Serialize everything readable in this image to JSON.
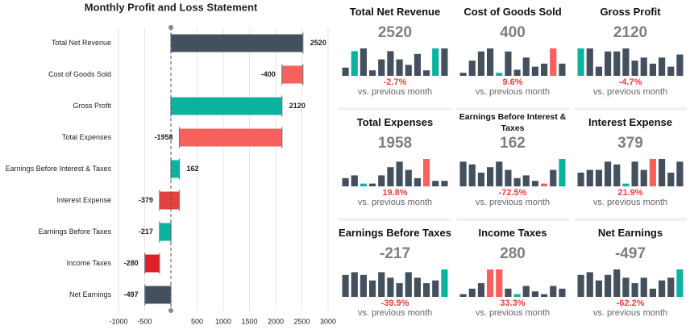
{
  "chart_data": {
    "type": "waterfall",
    "title": "Monthly Profit and Loss Statement",
    "categories": [
      "Total Net Revenue",
      "Cost of Goods Sold",
      "Gross Profit",
      "Total Expenses",
      "Earnings Before Interest & Taxes",
      "Interest Expense",
      "Earnings Before Taxes",
      "Income Taxes",
      "Net Earnings"
    ],
    "values": [
      2520,
      -400,
      2120,
      -1958,
      162,
      -379,
      -217,
      -280,
      -497
    ],
    "totals": [
      true,
      false,
      true,
      false,
      true,
      false,
      true,
      false,
      true
    ],
    "colors": [
      "#44505e",
      "#f8605e",
      "#0ab3a0",
      "#f8605e",
      "#0ab3a0",
      "#e8403e",
      "#0ab3a0",
      "#e02024",
      "#44505e"
    ],
    "xlim": [
      -1000,
      3000
    ],
    "xticks": [
      -1000,
      -500,
      500,
      1000,
      1500,
      2000,
      2500,
      3000
    ],
    "grid": true
  },
  "cards": [
    {
      "title": "Total Net Revenue",
      "value": 2520,
      "change": "-2.7%",
      "note": "vs. previous month",
      "bars": [
        3,
        9,
        10,
        2,
        6,
        9,
        6,
        4,
        8,
        2,
        10,
        10
      ],
      "bar_colors": [
        "#44505e",
        "#0ab3a0",
        "#44505e",
        "#44505e",
        "#44505e",
        "#44505e",
        "#44505e",
        "#44505e",
        "#44505e",
        "#44505e",
        "#0ab3a0",
        "#44505e"
      ]
    },
    {
      "title": "Cost of Goods Sold",
      "value": 400,
      "change": "9.6%",
      "note": "vs. previous month",
      "bars": [
        1,
        5,
        8,
        9,
        1,
        8,
        2,
        6,
        3,
        4,
        9,
        4
      ],
      "bar_colors": [
        "#44505e",
        "#44505e",
        "#44505e",
        "#44505e",
        "#0ab3a0",
        "#44505e",
        "#44505e",
        "#44505e",
        "#44505e",
        "#44505e",
        "#f8605e",
        "#44505e"
      ]
    },
    {
      "title": "Gross Profit",
      "value": 2120,
      "change": "-4.7%",
      "note": "vs. previous month",
      "bars": [
        9,
        9,
        3,
        8,
        8,
        9,
        5,
        6,
        4,
        6,
        3,
        7
      ],
      "bar_colors": [
        "#0ab3a0",
        "#44505e",
        "#44505e",
        "#44505e",
        "#44505e",
        "#44505e",
        "#44505e",
        "#44505e",
        "#44505e",
        "#44505e",
        "#44505e",
        "#44505e"
      ]
    },
    {
      "title": "Total Expenses",
      "value": 1958,
      "change": "19.8%",
      "note": "vs. previous month",
      "bars": [
        3,
        4,
        1,
        1,
        4,
        7,
        9,
        6,
        3,
        10,
        2,
        2
      ],
      "bar_colors": [
        "#44505e",
        "#44505e",
        "#0ab3a0",
        "#44505e",
        "#44505e",
        "#44505e",
        "#44505e",
        "#44505e",
        "#44505e",
        "#f8605e",
        "#44505e",
        "#44505e"
      ]
    },
    {
      "title": "Earnings Before Interest & Taxes",
      "value": 162,
      "change": "-72.5%",
      "note": "vs. previous month",
      "bars": [
        9,
        8,
        5,
        7,
        9,
        6,
        3,
        4,
        2,
        1,
        6,
        10
      ],
      "bar_colors": [
        "#44505e",
        "#44505e",
        "#44505e",
        "#44505e",
        "#44505e",
        "#44505e",
        "#44505e",
        "#44505e",
        "#44505e",
        "#f8605e",
        "#44505e",
        "#0ab3a0"
      ]
    },
    {
      "title": "Interest Expense",
      "value": 379,
      "change": "21.9%",
      "note": "vs. previous month",
      "bars": [
        5,
        6,
        6,
        9,
        8,
        1,
        9,
        6,
        10,
        10,
        5,
        9
      ],
      "bar_colors": [
        "#44505e",
        "#44505e",
        "#44505e",
        "#44505e",
        "#44505e",
        "#0ab3a0",
        "#44505e",
        "#44505e",
        "#f8605e",
        "#44505e",
        "#44505e",
        "#44505e"
      ]
    },
    {
      "title": "Earnings Before Taxes",
      "value": -217,
      "change": "-39.9%",
      "note": "vs. previous month",
      "bars": [
        8,
        9,
        8,
        6,
        9,
        7,
        5,
        9,
        7,
        5,
        6,
        10
      ],
      "bar_colors": [
        "#44505e",
        "#44505e",
        "#44505e",
        "#44505e",
        "#44505e",
        "#44505e",
        "#44505e",
        "#44505e",
        "#44505e",
        "#44505e",
        "#44505e",
        "#0ab3a0"
      ]
    },
    {
      "title": "Income Taxes",
      "value": 280,
      "change": "33.3%",
      "note": "vs. previous month",
      "bars": [
        1,
        3,
        5,
        10,
        10,
        3,
        1,
        4,
        2,
        1,
        4,
        3
      ],
      "bar_colors": [
        "#44505e",
        "#44505e",
        "#44505e",
        "#f8605e",
        "#f8605e",
        "#44505e",
        "#0ab3a0",
        "#44505e",
        "#44505e",
        "#44505e",
        "#44505e",
        "#44505e"
      ]
    },
    {
      "title": "Net Earnings",
      "value": -497,
      "change": "-62.2%",
      "note": "vs. previous month",
      "bars": [
        8,
        9,
        6,
        8,
        10,
        7,
        5,
        7,
        3,
        6,
        7,
        10
      ],
      "bar_colors": [
        "#44505e",
        "#44505e",
        "#44505e",
        "#44505e",
        "#44505e",
        "#44505e",
        "#44505e",
        "#44505e",
        "#44505e",
        "#44505e",
        "#44505e",
        "#0ab3a0"
      ]
    }
  ]
}
